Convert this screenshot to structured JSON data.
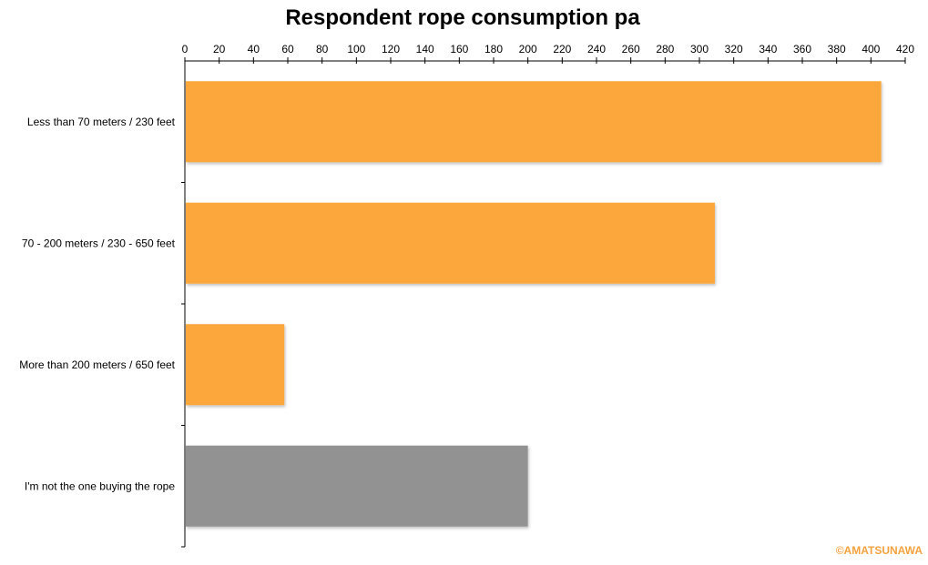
{
  "chart_data": {
    "type": "bar",
    "orientation": "horizontal",
    "title": "Respondent rope consumption pa",
    "xlabel": "",
    "ylabel": "",
    "xlim": [
      0,
      420
    ],
    "tick_step": 20,
    "ticks": [
      0,
      20,
      40,
      60,
      80,
      100,
      120,
      140,
      160,
      180,
      200,
      220,
      240,
      260,
      280,
      300,
      320,
      340,
      360,
      380,
      400,
      420
    ],
    "axis_position": "top",
    "grid": false,
    "legend": "none",
    "categories": [
      "Less than 70 meters / 230 feet",
      "70 - 200 meters / 230 - 650 feet",
      "More than 200 meters / 650 feet",
      "I'm not the one buying the rope"
    ],
    "values": [
      406,
      309,
      58,
      200
    ],
    "bar_colors": [
      "#FBA73B",
      "#FBA73B",
      "#FBA73B",
      "#929292"
    ]
  },
  "watermark": {
    "text": "©AMATSUNAWA",
    "color": "#F4A23E"
  }
}
